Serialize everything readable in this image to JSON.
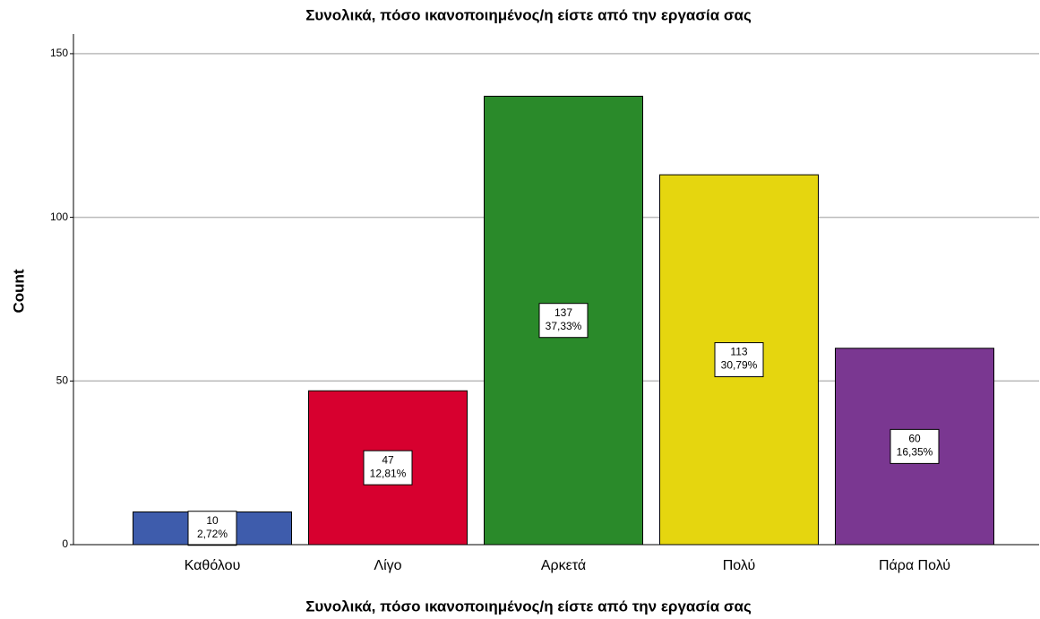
{
  "chart_data": {
    "type": "bar",
    "title": "Συνολικά, πόσο ικανοποιημένος/η είστε από την εργασία σας",
    "x_label": "Συνολικά, πόσο ικανοποιημένος/η είστε από την εργασία σας",
    "y_label": "Count",
    "categories": [
      "Καθόλου",
      "Λίγο",
      "Αρκετά",
      "Πολύ",
      "Πάρα Πολύ"
    ],
    "values": [
      10,
      47,
      137,
      113,
      60
    ],
    "percentage_labels": [
      "2,72%",
      "12,81%",
      "37,33%",
      "30,79%",
      "16,35%"
    ],
    "colors": [
      "#3e5cac",
      "#d7002f",
      "#2a8a2a",
      "#e5d60f",
      "#7a3791"
    ],
    "ylim": [
      0,
      156
    ],
    "yticks": [
      0,
      50,
      100,
      150
    ],
    "grid": true
  }
}
